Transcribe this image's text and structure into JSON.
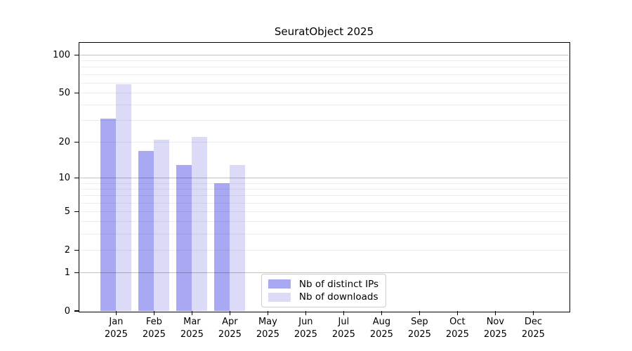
{
  "chart": {
    "title": "SeuratObject 2025"
  },
  "chart_data": {
    "type": "bar",
    "title": "SeuratObject 2025",
    "categories": [
      "Jan",
      "Feb",
      "Mar",
      "Apr",
      "May",
      "Jun",
      "Jul",
      "Aug",
      "Sep",
      "Oct",
      "Nov",
      "Dec"
    ],
    "year_label": "2025",
    "series": [
      {
        "name": "Nb of distinct IPs",
        "color": "#a8a8f3",
        "values": [
          31,
          17,
          13,
          9,
          null,
          null,
          null,
          null,
          null,
          null,
          null,
          null
        ]
      },
      {
        "name": "Nb of downloads",
        "color": "#dbdbf7",
        "values": [
          59,
          21,
          22,
          13,
          null,
          null,
          null,
          null,
          null,
          null,
          null,
          null
        ]
      }
    ],
    "xlabel": "",
    "ylabel": "",
    "yscale": "log1p",
    "ylim": [
      0,
      125
    ],
    "yticks": [
      0,
      1,
      2,
      5,
      10,
      20,
      50,
      100
    ],
    "grid": [
      1,
      2,
      3,
      4,
      5,
      6,
      7,
      8,
      9,
      10,
      20,
      30,
      40,
      50,
      60,
      70,
      80,
      90,
      100
    ],
    "grid_major": [
      1,
      10,
      100
    ],
    "grid_color_major": "rgba(0,0,0,0.24)",
    "grid_color_minor": "rgba(0,0,0,0.07)",
    "legend_position": "lower center",
    "axis_color": "#000000",
    "background_color": "#ffffff"
  }
}
